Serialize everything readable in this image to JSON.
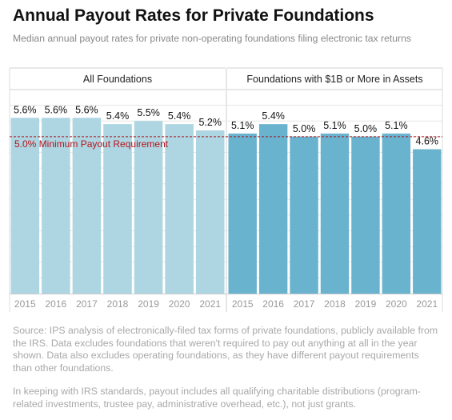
{
  "header": {
    "title": "Annual Payout Rates for Private Foundations",
    "subtitle": "Median annual payout rates for private non-operating foundations filing electronic tax returns"
  },
  "chart_data": {
    "type": "bar",
    "y_range": [
      0,
      6.5
    ],
    "grid": "horizontal",
    "panels": [
      {
        "label": "All Foundations",
        "color": "#aed6e2",
        "categories": [
          "2015",
          "2016",
          "2017",
          "2018",
          "2019",
          "2020",
          "2021"
        ],
        "values": [
          5.6,
          5.6,
          5.6,
          5.4,
          5.5,
          5.4,
          5.2
        ],
        "data_labels": [
          "5.6%",
          "5.6%",
          "5.6%",
          "5.4%",
          "5.5%",
          "5.4%",
          "5.2%"
        ]
      },
      {
        "label": "Foundations with $1B or More in Assets",
        "color": "#69b3ce",
        "categories": [
          "2015",
          "2016",
          "2017",
          "2018",
          "2019",
          "2020",
          "2021"
        ],
        "values": [
          5.1,
          5.4,
          5.0,
          5.1,
          5.0,
          5.1,
          4.6
        ],
        "data_labels": [
          "5.1%",
          "5.4%",
          "5.0%",
          "5.1%",
          "5.0%",
          "5.1%",
          "4.6%"
        ]
      }
    ],
    "reference_line": {
      "value": 5.0,
      "label": "5.0% Minimum Payout Requirement",
      "color": "#b5121b"
    }
  },
  "footer": {
    "source": "Source: IPS analysis of electronically-filed tax forms of private foundations, publicly available from the IRS. Data excludes foundations that weren't required to pay out anything at all in the year shown. Data also excludes operating foundations, as they have different payout requirements than other foundations.",
    "note": "In keeping with IRS standards, payout includes all qualifying charitable distributions (program-related investments, trustee pay, administrative overhead, etc.), not just grants."
  }
}
